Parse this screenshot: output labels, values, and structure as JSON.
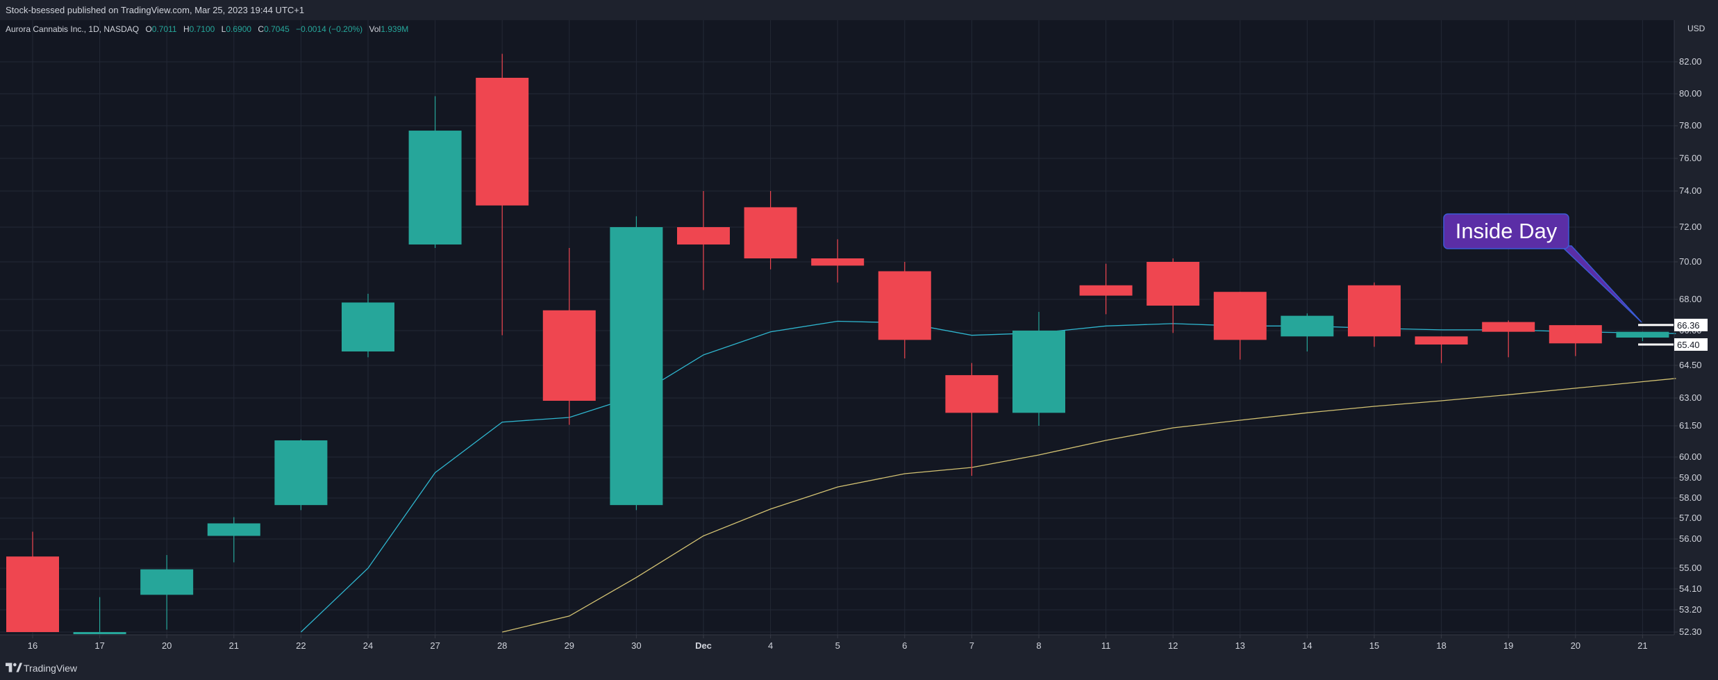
{
  "header": {
    "publisher": "Stock-bsessed published on TradingView.com, Mar 25, 2023 19:44 UTC+1"
  },
  "legend": {
    "symbol": "Aurora Cannabis Inc., 1D, NASDAQ",
    "o_label": "O",
    "o_value": "0.7011",
    "h_label": "H",
    "h_value": "0.7100",
    "l_label": "L",
    "l_value": "0.6900",
    "c_label": "C",
    "c_value": "0.7045",
    "change": "−0.0014 (−0.20%)",
    "vol_label": "Vol",
    "vol_value": "1.939M"
  },
  "annotation": {
    "text": "Inside Day"
  },
  "footer": {
    "brand": "TradingView"
  },
  "colors": {
    "up": "#26a69a",
    "down": "#ef4650",
    "ma_fast": "#2fb6cf",
    "ma_slow": "#d4c373",
    "background": "#131722",
    "callout": "#5b2ea6",
    "callout_border": "#3b5bd6"
  },
  "chart_data": {
    "type": "candlestick",
    "currency": "USD",
    "y_tick_labels": [
      "82.00",
      "80.00",
      "78.00",
      "76.00",
      "74.00",
      "72.00",
      "70.00",
      "68.00",
      "66.00",
      "64.50",
      "63.00",
      "61.50",
      "60.00",
      "59.00",
      "58.00",
      "57.00",
      "56.00",
      "55.00",
      "54.10",
      "53.20",
      "52.30"
    ],
    "ylim": [
      52.3,
      82.9
    ],
    "x_tick_labels": [
      "16",
      "17",
      "20",
      "21",
      "22",
      "24",
      "27",
      "28",
      "29",
      "30",
      "Dec",
      "4",
      "5",
      "6",
      "7",
      "8",
      "11",
      "12",
      "13",
      "14",
      "15",
      "18",
      "19",
      "20",
      "21"
    ],
    "candles": [
      {
        "x": "16",
        "open": 55.4,
        "high": 56.35,
        "low": 52.3,
        "close": 52.3
      },
      {
        "x": "17",
        "open": 52.3,
        "high": 53.75,
        "low": 52.3,
        "close": 52.3
      },
      {
        "x": "20",
        "open": 53.85,
        "high": 55.45,
        "low": 52.4,
        "close": 54.95
      },
      {
        "x": "21",
        "open": 56.15,
        "high": 57.05,
        "low": 55.2,
        "close": 56.75
      },
      {
        "x": "22",
        "open": 57.65,
        "high": 60.85,
        "low": 57.4,
        "close": 60.8
      },
      {
        "x": "24",
        "open": 65.1,
        "high": 68.3,
        "low": 64.85,
        "close": 67.8
      },
      {
        "x": "27",
        "open": 71.0,
        "high": 79.85,
        "low": 70.8,
        "close": 77.7
      },
      {
        "x": "28",
        "open": 81.0,
        "high": 82.5,
        "low": 65.8,
        "close": 73.2
      },
      {
        "x": "29",
        "open": 67.3,
        "high": 70.8,
        "low": 61.55,
        "close": 62.85
      },
      {
        "x": "30",
        "open": 57.65,
        "high": 72.6,
        "low": 57.4,
        "close": 72.0
      },
      {
        "x": "Dec",
        "open": 72.0,
        "high": 74.0,
        "low": 68.5,
        "close": 71.0
      },
      {
        "x": "4",
        "open": 73.1,
        "high": 74.0,
        "low": 69.6,
        "close": 70.2
      },
      {
        "x": "5",
        "open": 70.2,
        "high": 71.3,
        "low": 68.9,
        "close": 69.8
      },
      {
        "x": "6",
        "open": 69.5,
        "high": 70.0,
        "low": 64.8,
        "close": 65.6
      },
      {
        "x": "7",
        "open": 64.05,
        "high": 64.6,
        "low": 59.1,
        "close": 62.2
      },
      {
        "x": "8",
        "open": 62.2,
        "high": 67.2,
        "low": 61.5,
        "close": 66.0
      },
      {
        "x": "11",
        "open": 68.75,
        "high": 69.9,
        "low": 67.05,
        "close": 68.2
      },
      {
        "x": "12",
        "open": 70.0,
        "high": 70.2,
        "low": 65.9,
        "close": 67.6
      },
      {
        "x": "13",
        "open": 68.4,
        "high": 68.4,
        "low": 64.75,
        "close": 65.6
      },
      {
        "x": "14",
        "open": 65.75,
        "high": 67.1,
        "low": 65.1,
        "close": 66.95
      },
      {
        "x": "15",
        "open": 68.75,
        "high": 68.9,
        "low": 65.3,
        "close": 65.75
      },
      {
        "x": "18",
        "open": 65.75,
        "high": 65.75,
        "low": 64.6,
        "close": 65.4
      },
      {
        "x": "19",
        "open": 66.55,
        "high": 66.65,
        "low": 64.85,
        "close": 65.95
      },
      {
        "x": "20",
        "open": 66.35,
        "high": 66.35,
        "low": 64.9,
        "close": 65.45
      },
      {
        "x": "21",
        "open": 65.7,
        "high": 65.95,
        "low": 65.55,
        "close": 65.95
      }
    ],
    "moving_averages": [
      {
        "color": "#2fb6cf",
        "values": [
          null,
          null,
          null,
          null,
          52.3,
          55.0,
          59.25,
          61.7,
          61.95,
          63.1,
          64.95,
          65.95,
          66.6,
          66.5,
          65.8,
          65.9,
          66.3,
          66.45,
          66.3,
          66.3,
          66.15,
          66.05,
          66.05,
          65.95,
          65.9
        ]
      },
      {
        "color": "#d4c373",
        "values": [
          null,
          null,
          null,
          null,
          null,
          null,
          null,
          52.3,
          52.95,
          54.6,
          56.15,
          57.45,
          58.55,
          59.2,
          59.5,
          60.1,
          60.8,
          61.4,
          61.8,
          62.2,
          62.55,
          62.85,
          63.15,
          63.45,
          63.75
        ]
      }
    ],
    "price_labels": [
      "66.36",
      "65.40"
    ],
    "grid": true
  }
}
